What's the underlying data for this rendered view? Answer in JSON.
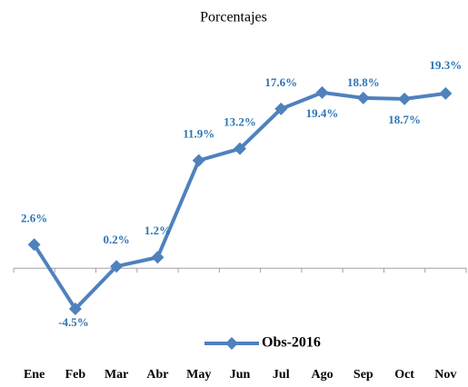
{
  "chart_data": {
    "type": "line",
    "title": "Porcentajes",
    "categories": [
      "Ene",
      "Feb",
      "Mar",
      "Abr",
      "May",
      "Jun",
      "Jul",
      "Ago",
      "Sep",
      "Oct",
      "Nov"
    ],
    "series": [
      {
        "name": "Obs-2016",
        "color": "#4f81bd",
        "values": [
          2.6,
          -4.5,
          0.2,
          1.2,
          11.9,
          13.2,
          17.6,
          19.4,
          18.8,
          18.7,
          19.3
        ],
        "value_labels": [
          "2.6%",
          "-4.5%",
          "0.2%",
          "1.2%",
          "11.9%",
          "13.2%",
          "17.6%",
          "19.4%",
          "18.8%",
          "18.7%",
          "19.3%"
        ]
      }
    ],
    "ylim": [
      -6,
      22
    ],
    "legend": "bottom"
  }
}
